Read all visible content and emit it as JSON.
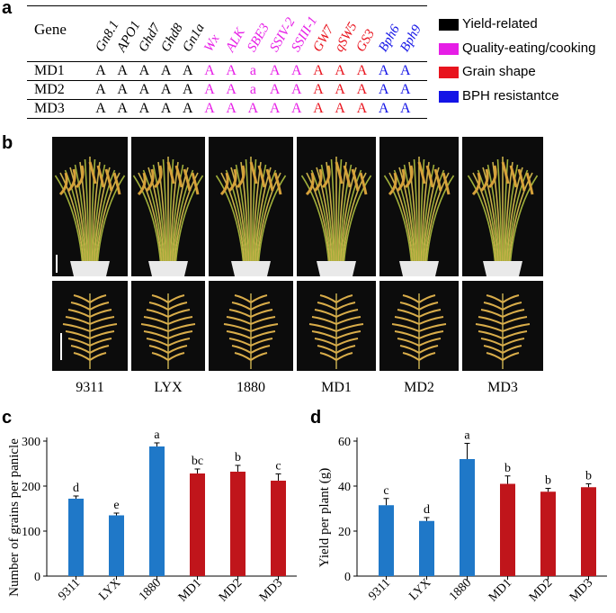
{
  "panel_a": {
    "letter": "a",
    "gene_header": "Gene",
    "genes": [
      {
        "name": "Gn8.1",
        "color": "#000000"
      },
      {
        "name": "APO1",
        "color": "#000000"
      },
      {
        "name": "Ghd7",
        "color": "#000000"
      },
      {
        "name": "Ghd8",
        "color": "#000000"
      },
      {
        "name": "Gn1a",
        "color": "#000000"
      },
      {
        "name": "Wx",
        "color": "#e61ee6"
      },
      {
        "name": "ALK",
        "color": "#e61ee6"
      },
      {
        "name": "SBE3",
        "color": "#e61ee6"
      },
      {
        "name": "SSIV-2",
        "color": "#e61ee6"
      },
      {
        "name": "SSIII-1",
        "color": "#e61ee6"
      },
      {
        "name": "GW7",
        "color": "#e8141e"
      },
      {
        "name": "qSW5",
        "color": "#e8141e"
      },
      {
        "name": "GS3",
        "color": "#e8141e"
      },
      {
        "name": "Bph6",
        "color": "#1414e6"
      },
      {
        "name": "Bph9",
        "color": "#1414e6"
      }
    ],
    "rows": [
      {
        "label": "MD1",
        "cells": [
          "A",
          "A",
          "A",
          "A",
          "A",
          "A",
          "A",
          "a",
          "A",
          "A",
          "A",
          "A",
          "A",
          "A",
          "A"
        ]
      },
      {
        "label": "MD2",
        "cells": [
          "A",
          "A",
          "A",
          "A",
          "A",
          "A",
          "A",
          "a",
          "A",
          "A",
          "A",
          "A",
          "A",
          "A",
          "A"
        ]
      },
      {
        "label": "MD3",
        "cells": [
          "A",
          "A",
          "A",
          "A",
          "A",
          "A",
          "A",
          "A",
          "A",
          "A",
          "A",
          "A",
          "A",
          "A",
          "A"
        ]
      }
    ],
    "legend": [
      {
        "label": "Yield-related",
        "color": "#000000"
      },
      {
        "label": "Quality-eating/cooking",
        "color": "#e61ee6"
      },
      {
        "label": "Grain shape",
        "color": "#e8141e"
      },
      {
        "label": "BPH resistantce",
        "color": "#1414e6"
      }
    ]
  },
  "panel_b": {
    "letter": "b",
    "varieties": [
      "9311",
      "LYX",
      "1880",
      "MD1",
      "MD2",
      "MD3"
    ]
  },
  "chart_data": [
    {
      "letter": "c",
      "type": "bar",
      "categories": [
        "9311",
        "LYX",
        "1880",
        "MD1",
        "MD2",
        "MD3"
      ],
      "values": [
        172,
        135,
        288,
        228,
        232,
        212
      ],
      "errors": [
        6,
        5,
        8,
        10,
        14,
        15
      ],
      "significance": [
        "d",
        "e",
        "a",
        "bc",
        "b",
        "c"
      ],
      "bar_colors": [
        "#1f78c8",
        "#1f78c8",
        "#1f78c8",
        "#c0151b",
        "#c0151b",
        "#c0151b"
      ],
      "ylabel": "Number of grains per panicle",
      "xlabel": "",
      "ylim": [
        0,
        300
      ],
      "yticks": [
        0,
        100,
        200,
        300
      ]
    },
    {
      "letter": "d",
      "type": "bar",
      "categories": [
        "9311",
        "LYX",
        "1880",
        "MD1",
        "MD2",
        "MD3"
      ],
      "values": [
        31.5,
        24.5,
        52,
        41,
        37.5,
        39.5
      ],
      "errors": [
        3,
        1.5,
        7,
        3.5,
        1.5,
        1.5
      ],
      "significance": [
        "c",
        "d",
        "a",
        "b",
        "b",
        "b"
      ],
      "bar_colors": [
        "#1f78c8",
        "#1f78c8",
        "#1f78c8",
        "#c0151b",
        "#c0151b",
        "#c0151b"
      ],
      "ylabel": "Yield per plant (g)",
      "xlabel": "",
      "ylim": [
        0,
        60
      ],
      "yticks": [
        0,
        20,
        40,
        60
      ]
    }
  ]
}
